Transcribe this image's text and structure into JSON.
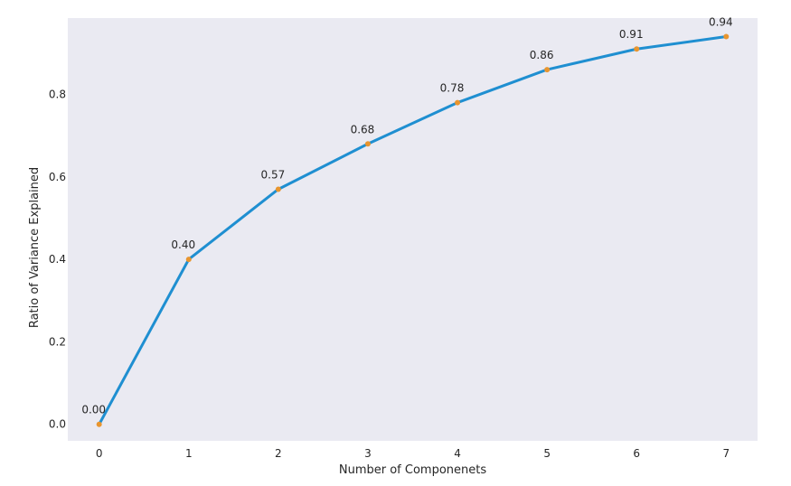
{
  "chart_data": {
    "type": "line",
    "title": "",
    "xlabel": "Number of Componenets",
    "ylabel": "Ratio of Variance Explained",
    "x": [
      0,
      1,
      2,
      3,
      4,
      5,
      6,
      7
    ],
    "series": [
      {
        "values": [
          0.0,
          0.4,
          0.57,
          0.68,
          0.78,
          0.86,
          0.91,
          0.94
        ],
        "color": "#1f8fd1",
        "marker_color": "#e8952f"
      }
    ],
    "data_labels": [
      "0.00",
      "0.40",
      "0.57",
      "0.68",
      "0.78",
      "0.86",
      "0.91",
      "0.94"
    ],
    "x_ticks": [
      "0",
      "1",
      "2",
      "3",
      "4",
      "5",
      "6",
      "7"
    ],
    "y_ticks": [
      "0.0",
      "0.2",
      "0.4",
      "0.6",
      "0.8"
    ],
    "y_tick_values": [
      0.0,
      0.2,
      0.4,
      0.6,
      0.8
    ],
    "xlim": [
      -0.35,
      7.35
    ],
    "ylim": [
      -0.04,
      0.985
    ],
    "grid": false,
    "background_color": "#eaeaf2"
  }
}
